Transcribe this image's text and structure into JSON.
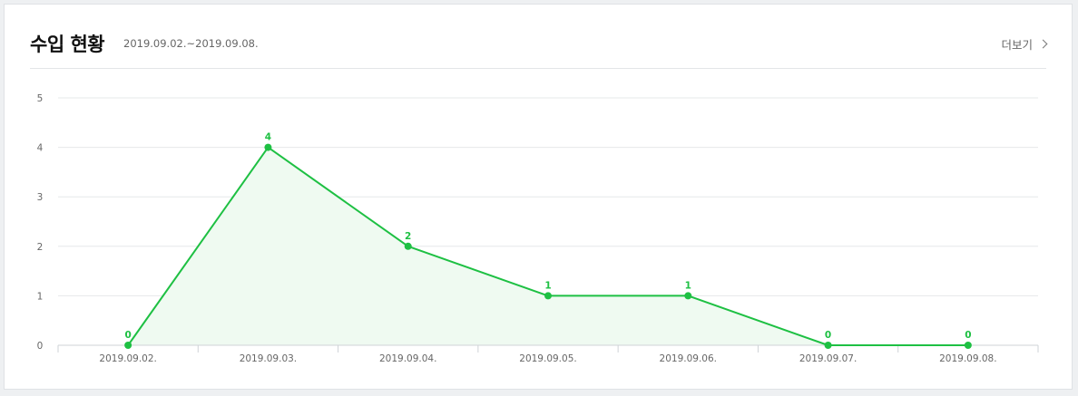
{
  "header": {
    "title": "수입 현황",
    "period": "2019.09.02.~2019.09.08.",
    "more_label": "더보기"
  },
  "chart_data": {
    "type": "area",
    "categories": [
      "2019.09.02.",
      "2019.09.03.",
      "2019.09.04.",
      "2019.09.05.",
      "2019.09.06.",
      "2019.09.07.",
      "2019.09.08."
    ],
    "values": [
      0,
      4,
      2,
      1,
      1,
      0,
      0
    ],
    "ylim": [
      0,
      5
    ],
    "yticks": [
      0,
      1,
      2,
      3,
      4,
      5
    ],
    "grid": true,
    "data_labels": true,
    "colors": {
      "line": "#1ec043",
      "fill": "#effaf1",
      "grid": "#e6e8ea",
      "axis": "#cfd3d7",
      "tick_text": "#666666"
    }
  }
}
